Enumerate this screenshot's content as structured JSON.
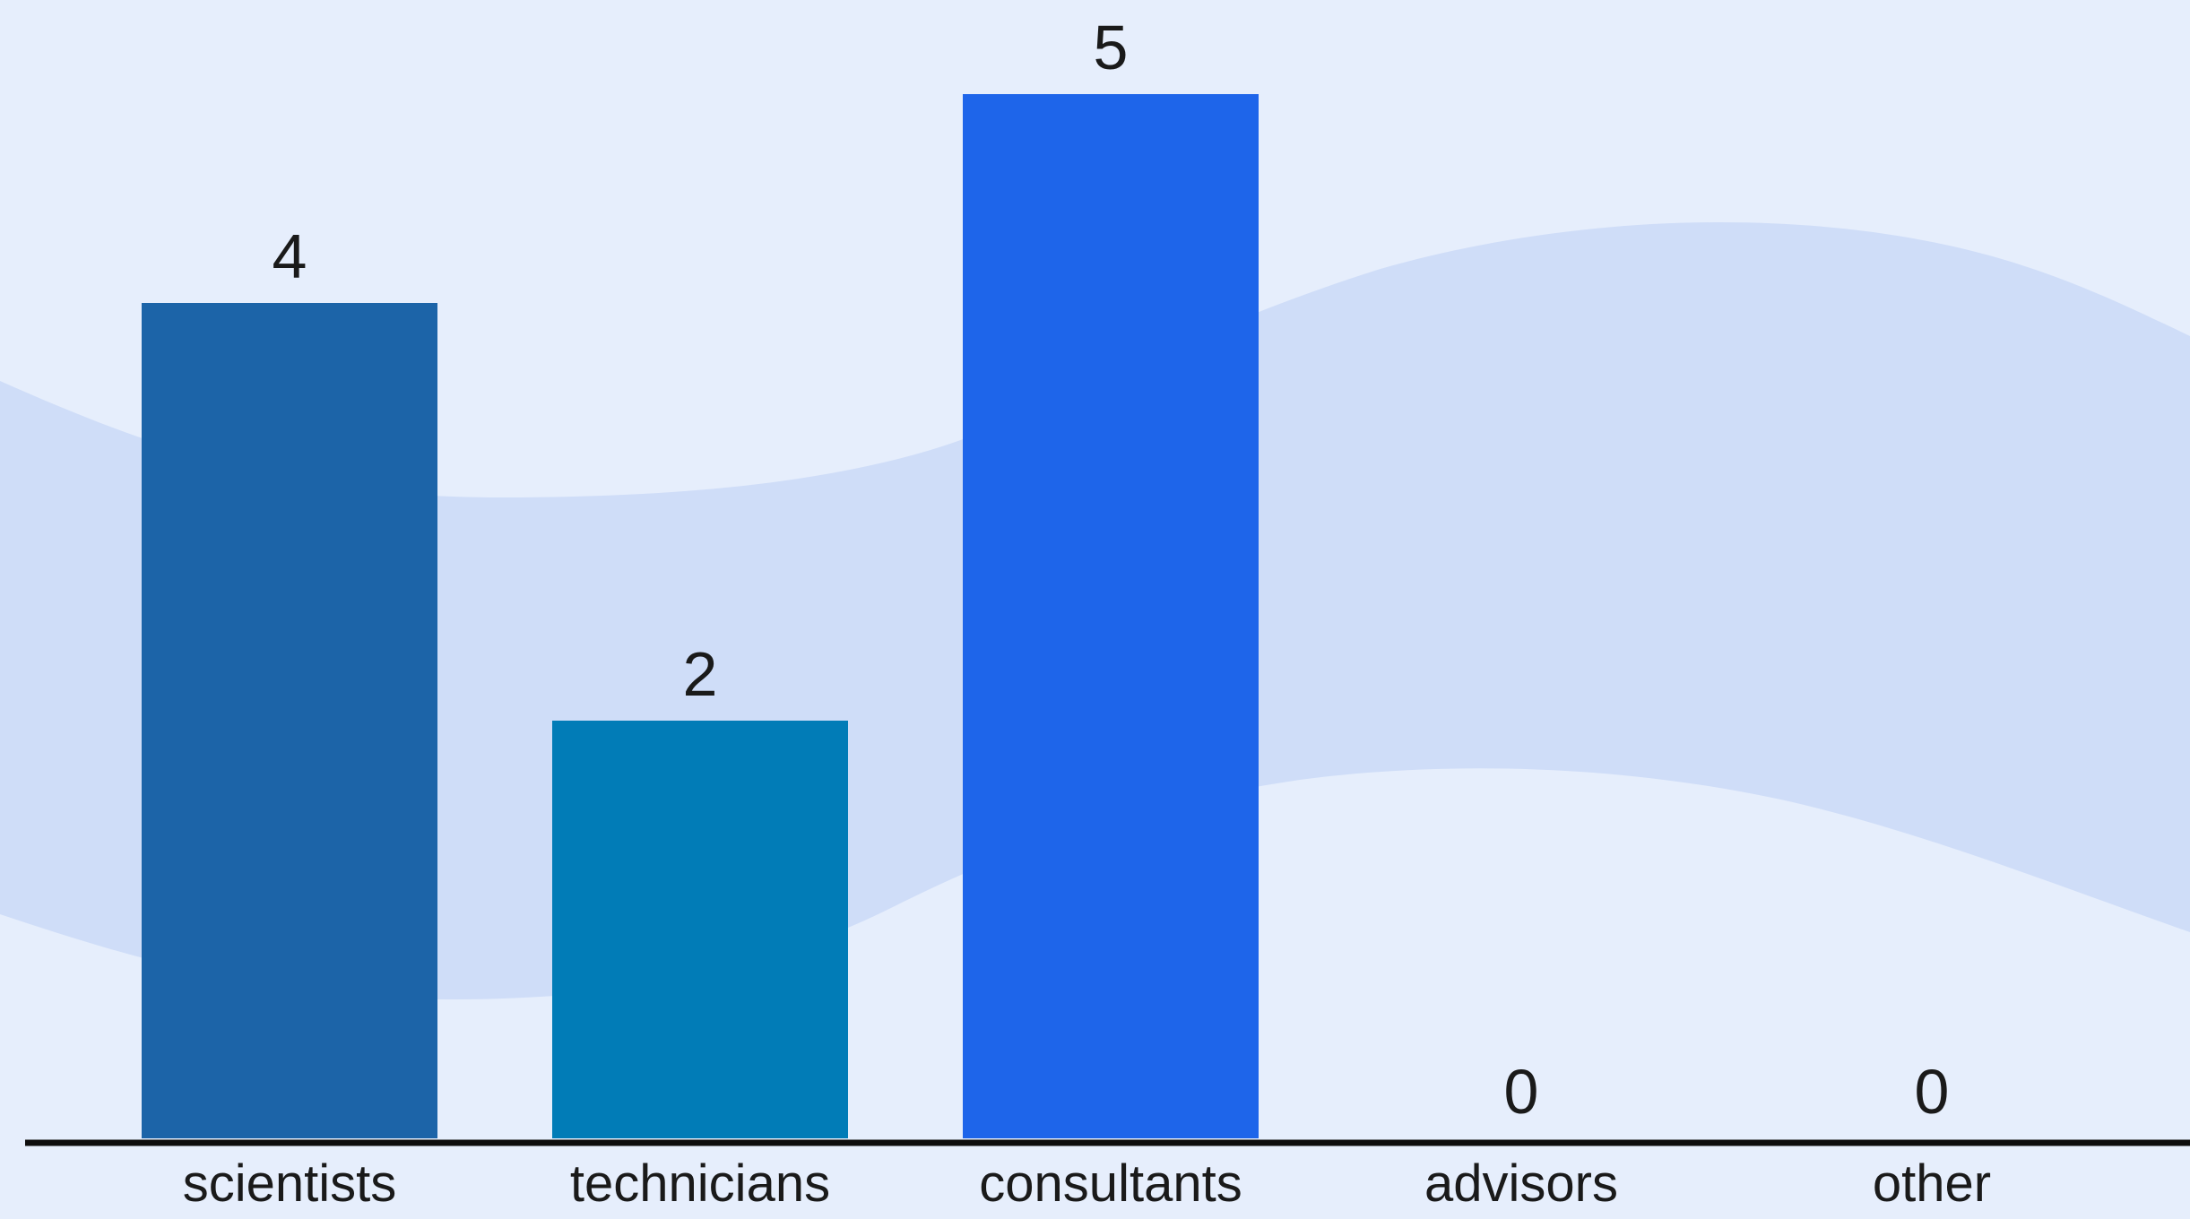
{
  "chart_data": {
    "type": "bar",
    "categories": [
      "scientists",
      "technicians",
      "consultants",
      "advisors",
      "other"
    ],
    "values": [
      4,
      2,
      5,
      0,
      0
    ],
    "colors": [
      "#1c64a8",
      "#017cb7",
      "#1e65ea",
      "#1e65ea",
      "#1e65ea"
    ],
    "ylim": [
      0,
      5
    ],
    "grid": false,
    "title": "",
    "xlabel": "",
    "ylabel": ""
  },
  "theme": {
    "background": "#e6eefc",
    "wave_color": "#cfddf8",
    "wave_light": "#e0e9fd",
    "axis_color": "#0d0d0d"
  }
}
